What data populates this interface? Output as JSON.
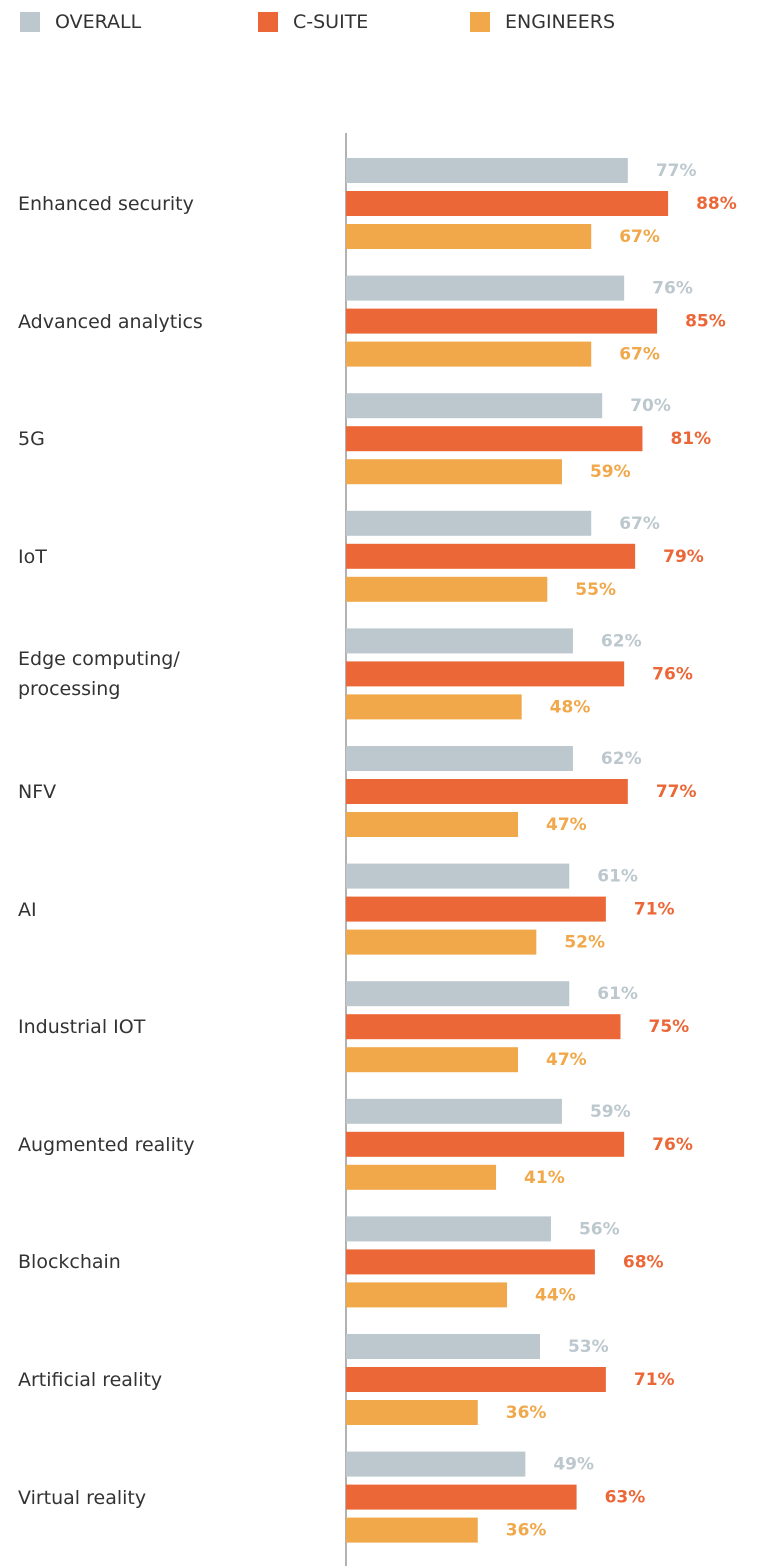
{
  "chart_data": {
    "type": "bar",
    "orientation": "horizontal",
    "categories": [
      "Enhanced security",
      "Advanced analytics",
      "5G",
      "IoT",
      "Edge computing/ processing",
      "NFV",
      "AI",
      "Industrial IOT",
      "Augmented reality",
      "Blockchain",
      "Artificial reality",
      "Virtual reality"
    ],
    "xlim": [
      0,
      100
    ],
    "series": [
      {
        "name": "OVERALL",
        "color": "#bcc8ce",
        "values": [
          77,
          76,
          70,
          67,
          62,
          62,
          61,
          61,
          59,
          56,
          53,
          49
        ],
        "value_labels": [
          "77%",
          "76%",
          "70%",
          "67%",
          "62%",
          "62%",
          "61%",
          "61%",
          "59%",
          "56%",
          "53%",
          "49%"
        ]
      },
      {
        "name": "C-SUITE",
        "color": "#ec6737",
        "values": [
          88,
          85,
          81,
          79,
          76,
          77,
          71,
          75,
          76,
          68,
          71,
          63
        ],
        "value_labels": [
          "88%",
          "85%",
          "81%",
          "79%",
          "76%",
          "77%",
          "71%",
          "75%",
          "76%",
          "68%",
          "71%",
          "63%"
        ]
      },
      {
        "name": "ENGINEERS",
        "color": "#f0a84a",
        "values": [
          67,
          67,
          59,
          55,
          48,
          47,
          52,
          47,
          41,
          44,
          36,
          36
        ],
        "value_labels": [
          "67%",
          "67%",
          "59%",
          "55%",
          "48%",
          "47%",
          "52%",
          "47%",
          "41%",
          "44%",
          "36%",
          "36%"
        ]
      }
    ]
  }
}
